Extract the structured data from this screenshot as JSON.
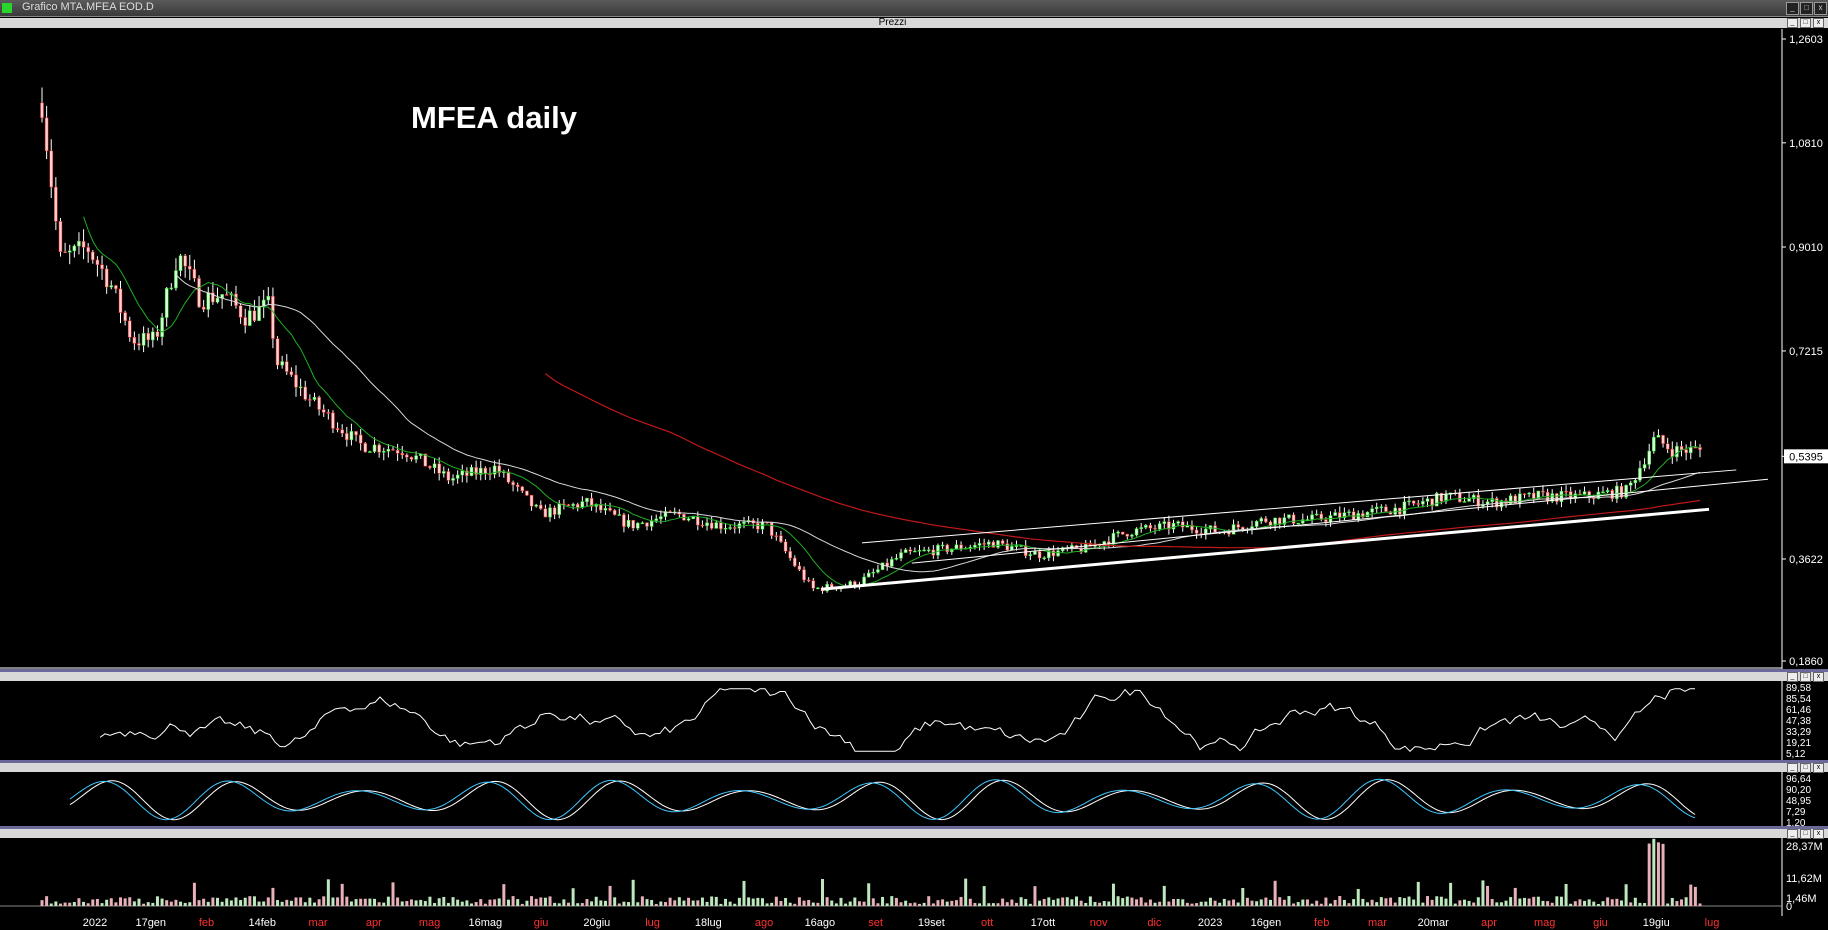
{
  "window": {
    "title": "Grafico MTA.MFEA EOD.D",
    "panel_title": "Prezzi"
  },
  "annotation": "MFEA daily",
  "colors": {
    "up": "#1ee01e",
    "down": "#e02020",
    "ma_fast": "#1fae1f",
    "ma_mid": "#d8d8d8",
    "ma_slow": "#c01818",
    "stoch": "#40c8ff",
    "vol_up": "#bde8bd",
    "vol_down": "#e8b0b8"
  },
  "chart_data": [
    {
      "type": "candlestick",
      "name": "Prezzi",
      "title": "MFEA daily",
      "ylim": [
        0.186,
        1.2603
      ],
      "y_ticks": [
        "1,2603",
        "1,0810",
        "0,9010",
        "0,7215",
        "0,5395",
        "0,3622",
        "0,1860"
      ],
      "last_price": "0,5395",
      "x_labels": [
        {
          "text": "2022",
          "color": "white"
        },
        {
          "text": "17gen",
          "color": "white"
        },
        {
          "text": "feb",
          "color": "red"
        },
        {
          "text": "14feb",
          "color": "white"
        },
        {
          "text": "mar",
          "color": "red"
        },
        {
          "text": "apr",
          "color": "red"
        },
        {
          "text": "mag",
          "color": "red"
        },
        {
          "text": "16mag",
          "color": "white"
        },
        {
          "text": "giu",
          "color": "red"
        },
        {
          "text": "20giu",
          "color": "white"
        },
        {
          "text": "lug",
          "color": "red"
        },
        {
          "text": "18lug",
          "color": "white"
        },
        {
          "text": "ago",
          "color": "red"
        },
        {
          "text": "16ago",
          "color": "white"
        },
        {
          "text": "set",
          "color": "red"
        },
        {
          "text": "19set",
          "color": "white"
        },
        {
          "text": "ott",
          "color": "red"
        },
        {
          "text": "17ott",
          "color": "white"
        },
        {
          "text": "nov",
          "color": "red"
        },
        {
          "text": "dic",
          "color": "red"
        },
        {
          "text": "2023",
          "color": "white"
        },
        {
          "text": "16gen",
          "color": "white"
        },
        {
          "text": "feb",
          "color": "red"
        },
        {
          "text": "mar",
          "color": "red"
        },
        {
          "text": "20mar",
          "color": "white"
        },
        {
          "text": "apr",
          "color": "red"
        },
        {
          "text": "mag",
          "color": "red"
        },
        {
          "text": "giu",
          "color": "red"
        },
        {
          "text": "19giu",
          "color": "white"
        },
        {
          "text": "lug",
          "color": "red"
        }
      ],
      "close_path": [
        {
          "m": 0,
          "v": 1.15
        },
        {
          "m": 0.4,
          "v": 0.88
        },
        {
          "m": 1,
          "v": 0.9
        },
        {
          "m": 1.5,
          "v": 0.84
        },
        {
          "m": 2,
          "v": 0.74
        },
        {
          "m": 2.5,
          "v": 0.74
        },
        {
          "m": 3,
          "v": 0.89
        },
        {
          "m": 3.5,
          "v": 0.81
        },
        {
          "m": 4,
          "v": 0.82
        },
        {
          "m": 4.5,
          "v": 0.78
        },
        {
          "m": 5,
          "v": 0.8
        },
        {
          "m": 5.2,
          "v": 0.7
        },
        {
          "m": 6,
          "v": 0.63
        },
        {
          "m": 7,
          "v": 0.56
        },
        {
          "m": 8,
          "v": 0.55
        },
        {
          "m": 9,
          "v": 0.5
        },
        {
          "m": 10,
          "v": 0.52
        },
        {
          "m": 11,
          "v": 0.44
        },
        {
          "m": 12,
          "v": 0.46
        },
        {
          "m": 13,
          "v": 0.42
        },
        {
          "m": 14,
          "v": 0.44
        },
        {
          "m": 15,
          "v": 0.42
        },
        {
          "m": 16,
          "v": 0.42
        },
        {
          "m": 17,
          "v": 0.31
        },
        {
          "m": 18,
          "v": 0.32
        },
        {
          "m": 19,
          "v": 0.37
        },
        {
          "m": 20,
          "v": 0.38
        },
        {
          "m": 21,
          "v": 0.39
        },
        {
          "m": 22,
          "v": 0.37
        },
        {
          "m": 23,
          "v": 0.38
        },
        {
          "m": 24,
          "v": 0.41
        },
        {
          "m": 25,
          "v": 0.42
        },
        {
          "m": 26,
          "v": 0.41
        },
        {
          "m": 27,
          "v": 0.43
        },
        {
          "m": 28,
          "v": 0.43
        },
        {
          "m": 29,
          "v": 0.44
        },
        {
          "m": 30,
          "v": 0.45
        },
        {
          "m": 31,
          "v": 0.47
        },
        {
          "m": 32,
          "v": 0.46
        },
        {
          "m": 33,
          "v": 0.47
        },
        {
          "m": 34,
          "v": 0.47
        },
        {
          "m": 35,
          "v": 0.48
        },
        {
          "m": 35.6,
          "v": 0.57
        },
        {
          "m": 36,
          "v": 0.55
        }
      ]
    },
    {
      "type": "line",
      "name": "oscillator-1",
      "y_ticks": [
        "89,58",
        "85,54",
        "61,46",
        "47,38",
        "33,29",
        "19,21",
        "5,12"
      ]
    },
    {
      "type": "line",
      "name": "stochastic",
      "y_ticks": [
        "96,64",
        "90,20",
        "48,95",
        "7,29",
        "1,20"
      ]
    },
    {
      "type": "bar",
      "name": "volume",
      "y_ticks": [
        "28,37M",
        "11,62M",
        "1,46M",
        "0"
      ]
    }
  ]
}
